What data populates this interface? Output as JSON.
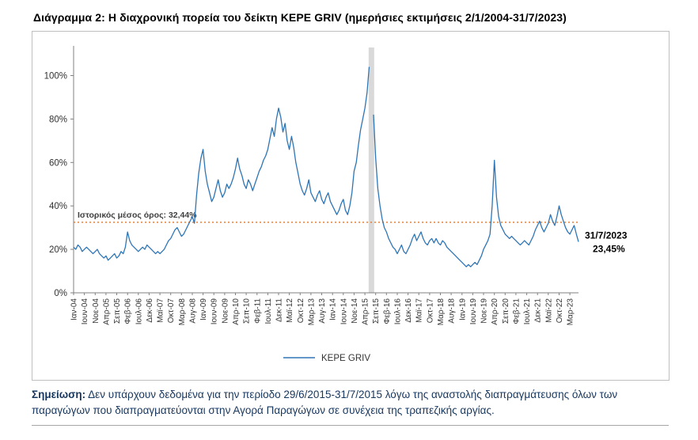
{
  "title": "Διάγραμμα 2: Η διαχρονική πορεία του δείκτη KEPE GRIV (ημερήσιες εκτιμήσεις 2/1/2004-31/7/2023)",
  "note": {
    "label": "Σημείωση:",
    "text": " Δεν υπάρχουν δεδομένα για την περίοδο 29/6/2015-31/7/2015 λόγω της αναστολής διαπραγμάτευσης όλων των παραγώγων που διαπραγματεύονται στην Αγορά Παραγώγων σε συνέχεια της τραπεζικής αργίας."
  },
  "chart_data": {
    "type": "line",
    "title": "Διάγραμμα 2: Η διαχρονική πορεία του δείκτη KEPE GRIV (ημερήσιες εκτιμήσεις 2/1/2004-31/7/2023)",
    "x_start": "2004-01",
    "x_step_months": 1,
    "sampling": "monthly estimates read from daily line",
    "ylim": [
      0,
      110
    ],
    "grid": false,
    "y_tick_values": [
      0,
      20,
      40,
      60,
      80,
      100
    ],
    "y_tick_labels": [
      "0%",
      "20%",
      "40%",
      "60%",
      "80%",
      "100%"
    ],
    "x_tick_every_months": 5,
    "x_tick_labels": [
      "Ιαν-04",
      "Ιουν-04",
      "Νοε-04",
      "Απρ-05",
      "Σεπ-05",
      "Φεβ-06",
      "Ιουλ-06",
      "Δεκ-06",
      "Μαϊ-07",
      "Οκτ-07",
      "Μαρ-08",
      "Αυγ-08",
      "Ιαν-09",
      "Ιουν-09",
      "Νοε-09",
      "Απρ-10",
      "Σεπ-10",
      "Φεβ-11",
      "Ιουλ-11",
      "Δεκ-11",
      "Μαϊ-12",
      "Οκτ-12",
      "Μαρ-13",
      "Αυγ-13",
      "Ιαν-14",
      "Ιουν-14",
      "Νοε-14",
      "Απρ-15",
      "Σεπ-15",
      "Φεβ-16",
      "Ιουλ-16",
      "Δεκ-16",
      "Μαϊ-17",
      "Οκτ-17",
      "Μαρ-18",
      "Αυγ-18",
      "Ιαν-19",
      "Ιουν-19",
      "Νοε-19",
      "Απρ-20",
      "Σεπ-20",
      "Φεβ-21",
      "Ιουλ-21",
      "Δεκ-21",
      "Μαϊ-22",
      "Οκτ-22",
      "Μαρ-23"
    ],
    "series": [
      {
        "name": "KEPE GRIV",
        "color": "#2E75B6",
        "values": [
          21,
          20,
          22,
          21,
          19,
          20,
          21,
          20,
          19,
          18,
          19,
          20,
          18,
          17,
          16,
          17,
          15,
          16,
          17,
          18,
          16,
          17,
          19,
          18,
          21,
          28,
          24,
          22,
          21,
          20,
          19,
          20,
          21,
          20,
          22,
          21,
          20,
          19,
          18,
          19,
          18,
          19,
          20,
          22,
          24,
          25,
          27,
          29,
          30,
          28,
          26,
          27,
          29,
          31,
          33,
          35,
          32,
          45,
          55,
          62,
          66,
          56,
          50,
          46,
          42,
          44,
          48,
          52,
          47,
          44,
          46,
          50,
          48,
          50,
          53,
          57,
          62,
          57,
          54,
          50,
          48,
          52,
          50,
          47,
          50,
          53,
          56,
          58,
          61,
          63,
          66,
          71,
          76,
          72,
          80,
          85,
          81,
          74,
          78,
          70,
          66,
          72,
          67,
          60,
          55,
          50,
          47,
          45,
          48,
          52,
          46,
          44,
          42,
          45,
          47,
          43,
          41,
          44,
          46,
          42,
          40,
          38,
          36,
          38,
          41,
          43,
          38,
          36,
          40,
          46,
          56,
          60,
          68,
          75,
          80,
          85,
          92,
          104,
          null,
          82,
          62,
          48,
          40,
          34,
          30,
          28,
          25,
          23,
          21,
          20,
          18,
          20,
          22,
          19,
          18,
          20,
          22,
          25,
          27,
          24,
          26,
          28,
          25,
          23,
          22,
          24,
          25,
          23,
          25,
          23,
          22,
          24,
          23,
          21,
          20,
          19,
          18,
          17,
          16,
          15,
          14,
          13,
          12,
          13,
          12,
          13,
          14,
          13,
          15,
          17,
          20,
          22,
          24,
          27,
          40,
          61,
          44,
          35,
          31,
          29,
          27,
          26,
          25,
          26,
          25,
          24,
          23,
          22,
          23,
          24,
          23,
          22,
          24,
          26,
          29,
          31,
          33,
          30,
          28,
          30,
          32,
          36,
          33,
          31,
          35,
          40,
          36,
          33,
          30,
          28,
          27,
          29,
          31,
          27,
          23.45
        ]
      }
    ],
    "average_line": {
      "value": 32.44,
      "label": "Ιστορικός μέσος όρος: 32,44%",
      "color": "#ED7D31",
      "style": "dotted"
    },
    "end_annotation": {
      "line1": "31/7/2023",
      "line2": "23,45%",
      "value": 23.45
    },
    "gap": {
      "month_index": 138,
      "period": "29/6/2015-31/7/2015",
      "color": "#D9D9D9"
    },
    "legend": {
      "label": "KEPE GRIV",
      "position": "bottom-center"
    }
  }
}
